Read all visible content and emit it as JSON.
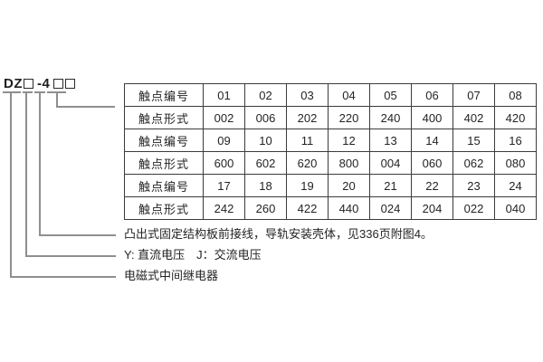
{
  "model": {
    "prefix": "DZ",
    "series": "-4",
    "placeholder_boxes": 3
  },
  "table": {
    "rows": [
      [
        "触点编号",
        "01",
        "02",
        "03",
        "04",
        "05",
        "06",
        "07",
        "08"
      ],
      [
        "触点形式",
        "002",
        "006",
        "202",
        "220",
        "240",
        "400",
        "402",
        "420"
      ],
      [
        "触点编号",
        "09",
        "10",
        "11",
        "12",
        "13",
        "14",
        "15",
        "16"
      ],
      [
        "触点形式",
        "600",
        "602",
        "620",
        "800",
        "004",
        "060",
        "062",
        "080"
      ],
      [
        "触点编号",
        "17",
        "18",
        "19",
        "20",
        "21",
        "22",
        "23",
        "24"
      ],
      [
        "触点形式",
        "242",
        "260",
        "422",
        "440",
        "024",
        "204",
        "022",
        "040"
      ]
    ]
  },
  "annotations": [
    {
      "label": "凸出式固定结构板前接线，导轨安装壳体，见336页附图4。"
    },
    {
      "label": "Y: 直流电压　J：交流电压"
    },
    {
      "label": "电磁式中间继电器"
    }
  ],
  "colors": {
    "background": "#ffffff",
    "text": "#242424",
    "table_border": "#3c3c3c",
    "leader_line": "#8f8f8f"
  }
}
